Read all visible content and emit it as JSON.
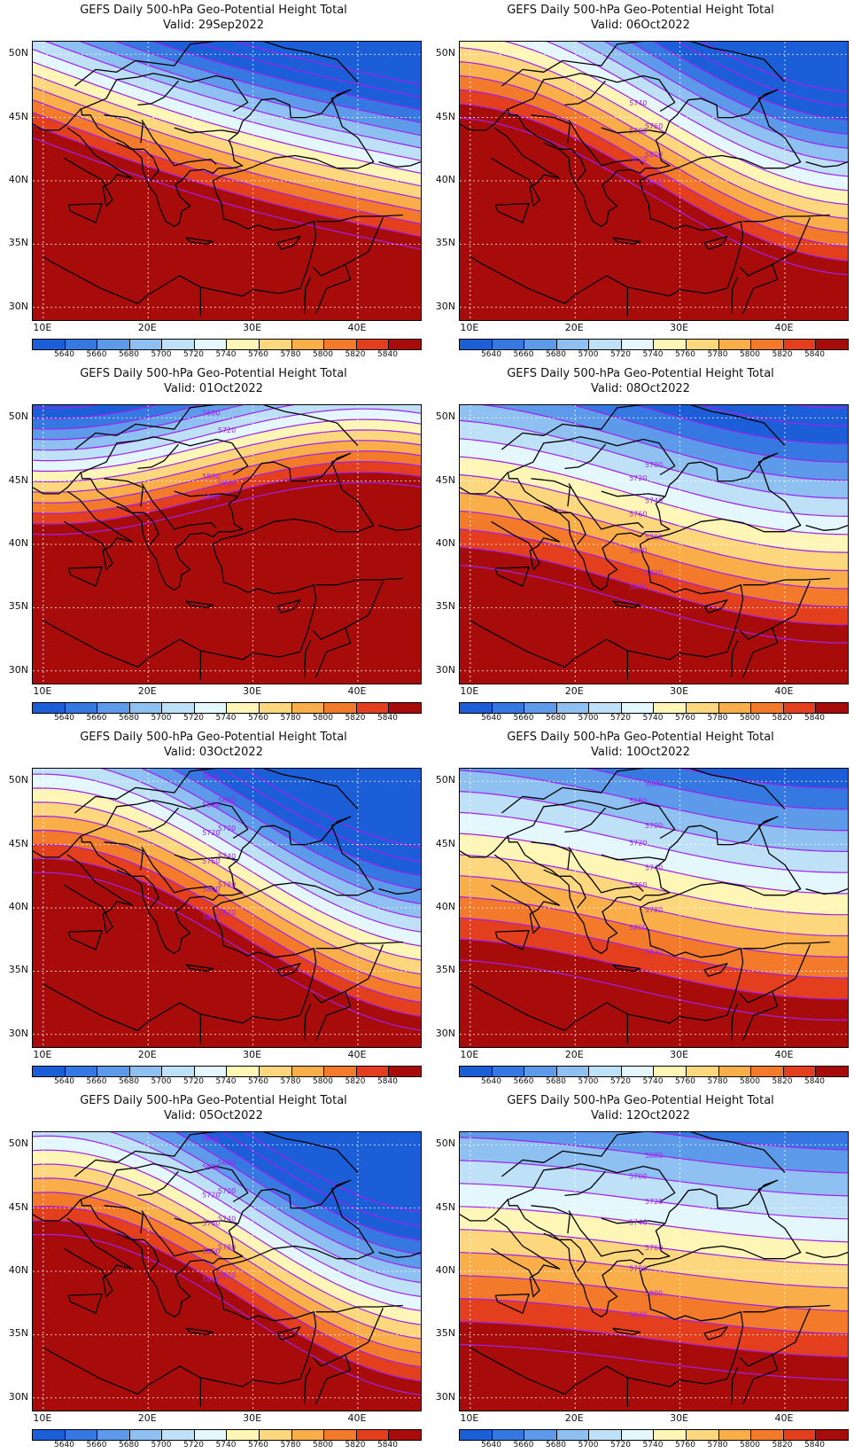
{
  "title_line": "GEFS Daily 500-hPa Geo-Potential Height Total",
  "valid_prefix": "Valid: ",
  "y_ticks": [
    "50N",
    "45N",
    "40N",
    "35N",
    "30N"
  ],
  "x_ticks": [
    "10E",
    "20E",
    "30E",
    "40E"
  ],
  "colorbar": {
    "labels": [
      "5640",
      "5660",
      "5680",
      "5700",
      "5720",
      "5740",
      "5760",
      "5780",
      "5800",
      "5820",
      "5840"
    ],
    "colors": [
      "#1c5ed8",
      "#3678e2",
      "#5d9bea",
      "#8ec0f1",
      "#bfe1f8",
      "#e4f7fd",
      "#fdf6b6",
      "#fcd77d",
      "#f9ae49",
      "#f37a2b",
      "#e33e1d",
      "#a80c0a"
    ],
    "contour_color": "#a020f0"
  },
  "panels": [
    {
      "valid": "29Sep2022",
      "params": {
        "base": 5620,
        "grad": 20,
        "amp": 0.8,
        "phase": 0.0,
        "tilt": 1.1
      },
      "labels": []
    },
    {
      "valid": "06Oct2022",
      "params": {
        "base": 5640,
        "grad": 18,
        "amp": -5,
        "phase": 0.5,
        "tilt": 0.3
      },
      "labels": [
        "5740",
        "5760",
        "5780",
        "5800",
        "5820",
        "5840"
      ]
    },
    {
      "valid": "01Oct2022",
      "params": {
        "base": 5660,
        "grad": 24,
        "amp": 3.5,
        "phase": 0.55,
        "tilt": 0.4
      },
      "labels": [
        "5640",
        "5660",
        "5680",
        "5720",
        "5800",
        "5820",
        "5840"
      ]
    },
    {
      "valid": "08Oct2022",
      "params": {
        "base": 5640,
        "grad": 14,
        "amp": -2.5,
        "phase": 0.55,
        "tilt": 0.15
      },
      "labels": [
        "5640",
        "5700",
        "5720",
        "5740",
        "5760",
        "5780",
        "5800",
        "5820",
        "5840"
      ]
    },
    {
      "valid": "03Oct2022",
      "params": {
        "base": 5600,
        "grad": 18,
        "amp": -5.5,
        "phase": 0.45,
        "tilt": 0.2
      },
      "labels": [
        "5640",
        "5660",
        "5680",
        "5700",
        "5720",
        "5740",
        "5760",
        "5780",
        "5800",
        "5820",
        "5840"
      ]
    },
    {
      "valid": "10Oct2022",
      "params": {
        "base": 5650,
        "grad": 12,
        "amp": -2.0,
        "phase": 0.55,
        "tilt": 0.1
      },
      "labels": [
        "5640",
        "5660",
        "5680",
        "5700",
        "5720",
        "5740",
        "5760",
        "5780",
        "5800",
        "5820"
      ]
    },
    {
      "valid": "05Oct2022",
      "params": {
        "base": 5600,
        "grad": 18,
        "amp": -6,
        "phase": 0.45,
        "tilt": 0.1
      },
      "labels": [
        "5640",
        "5660",
        "5680",
        "5700",
        "5720",
        "5740",
        "5760",
        "5780",
        "5800",
        "5820",
        "5840"
      ]
    },
    {
      "valid": "12Oct2022",
      "params": {
        "base": 5660,
        "grad": 11,
        "amp": -1.0,
        "phase": 0.5,
        "tilt": 0.1
      },
      "labels": [
        "5660",
        "5680",
        "5700",
        "5720",
        "5740",
        "5760",
        "5780",
        "5800",
        "5820"
      ]
    }
  ]
}
